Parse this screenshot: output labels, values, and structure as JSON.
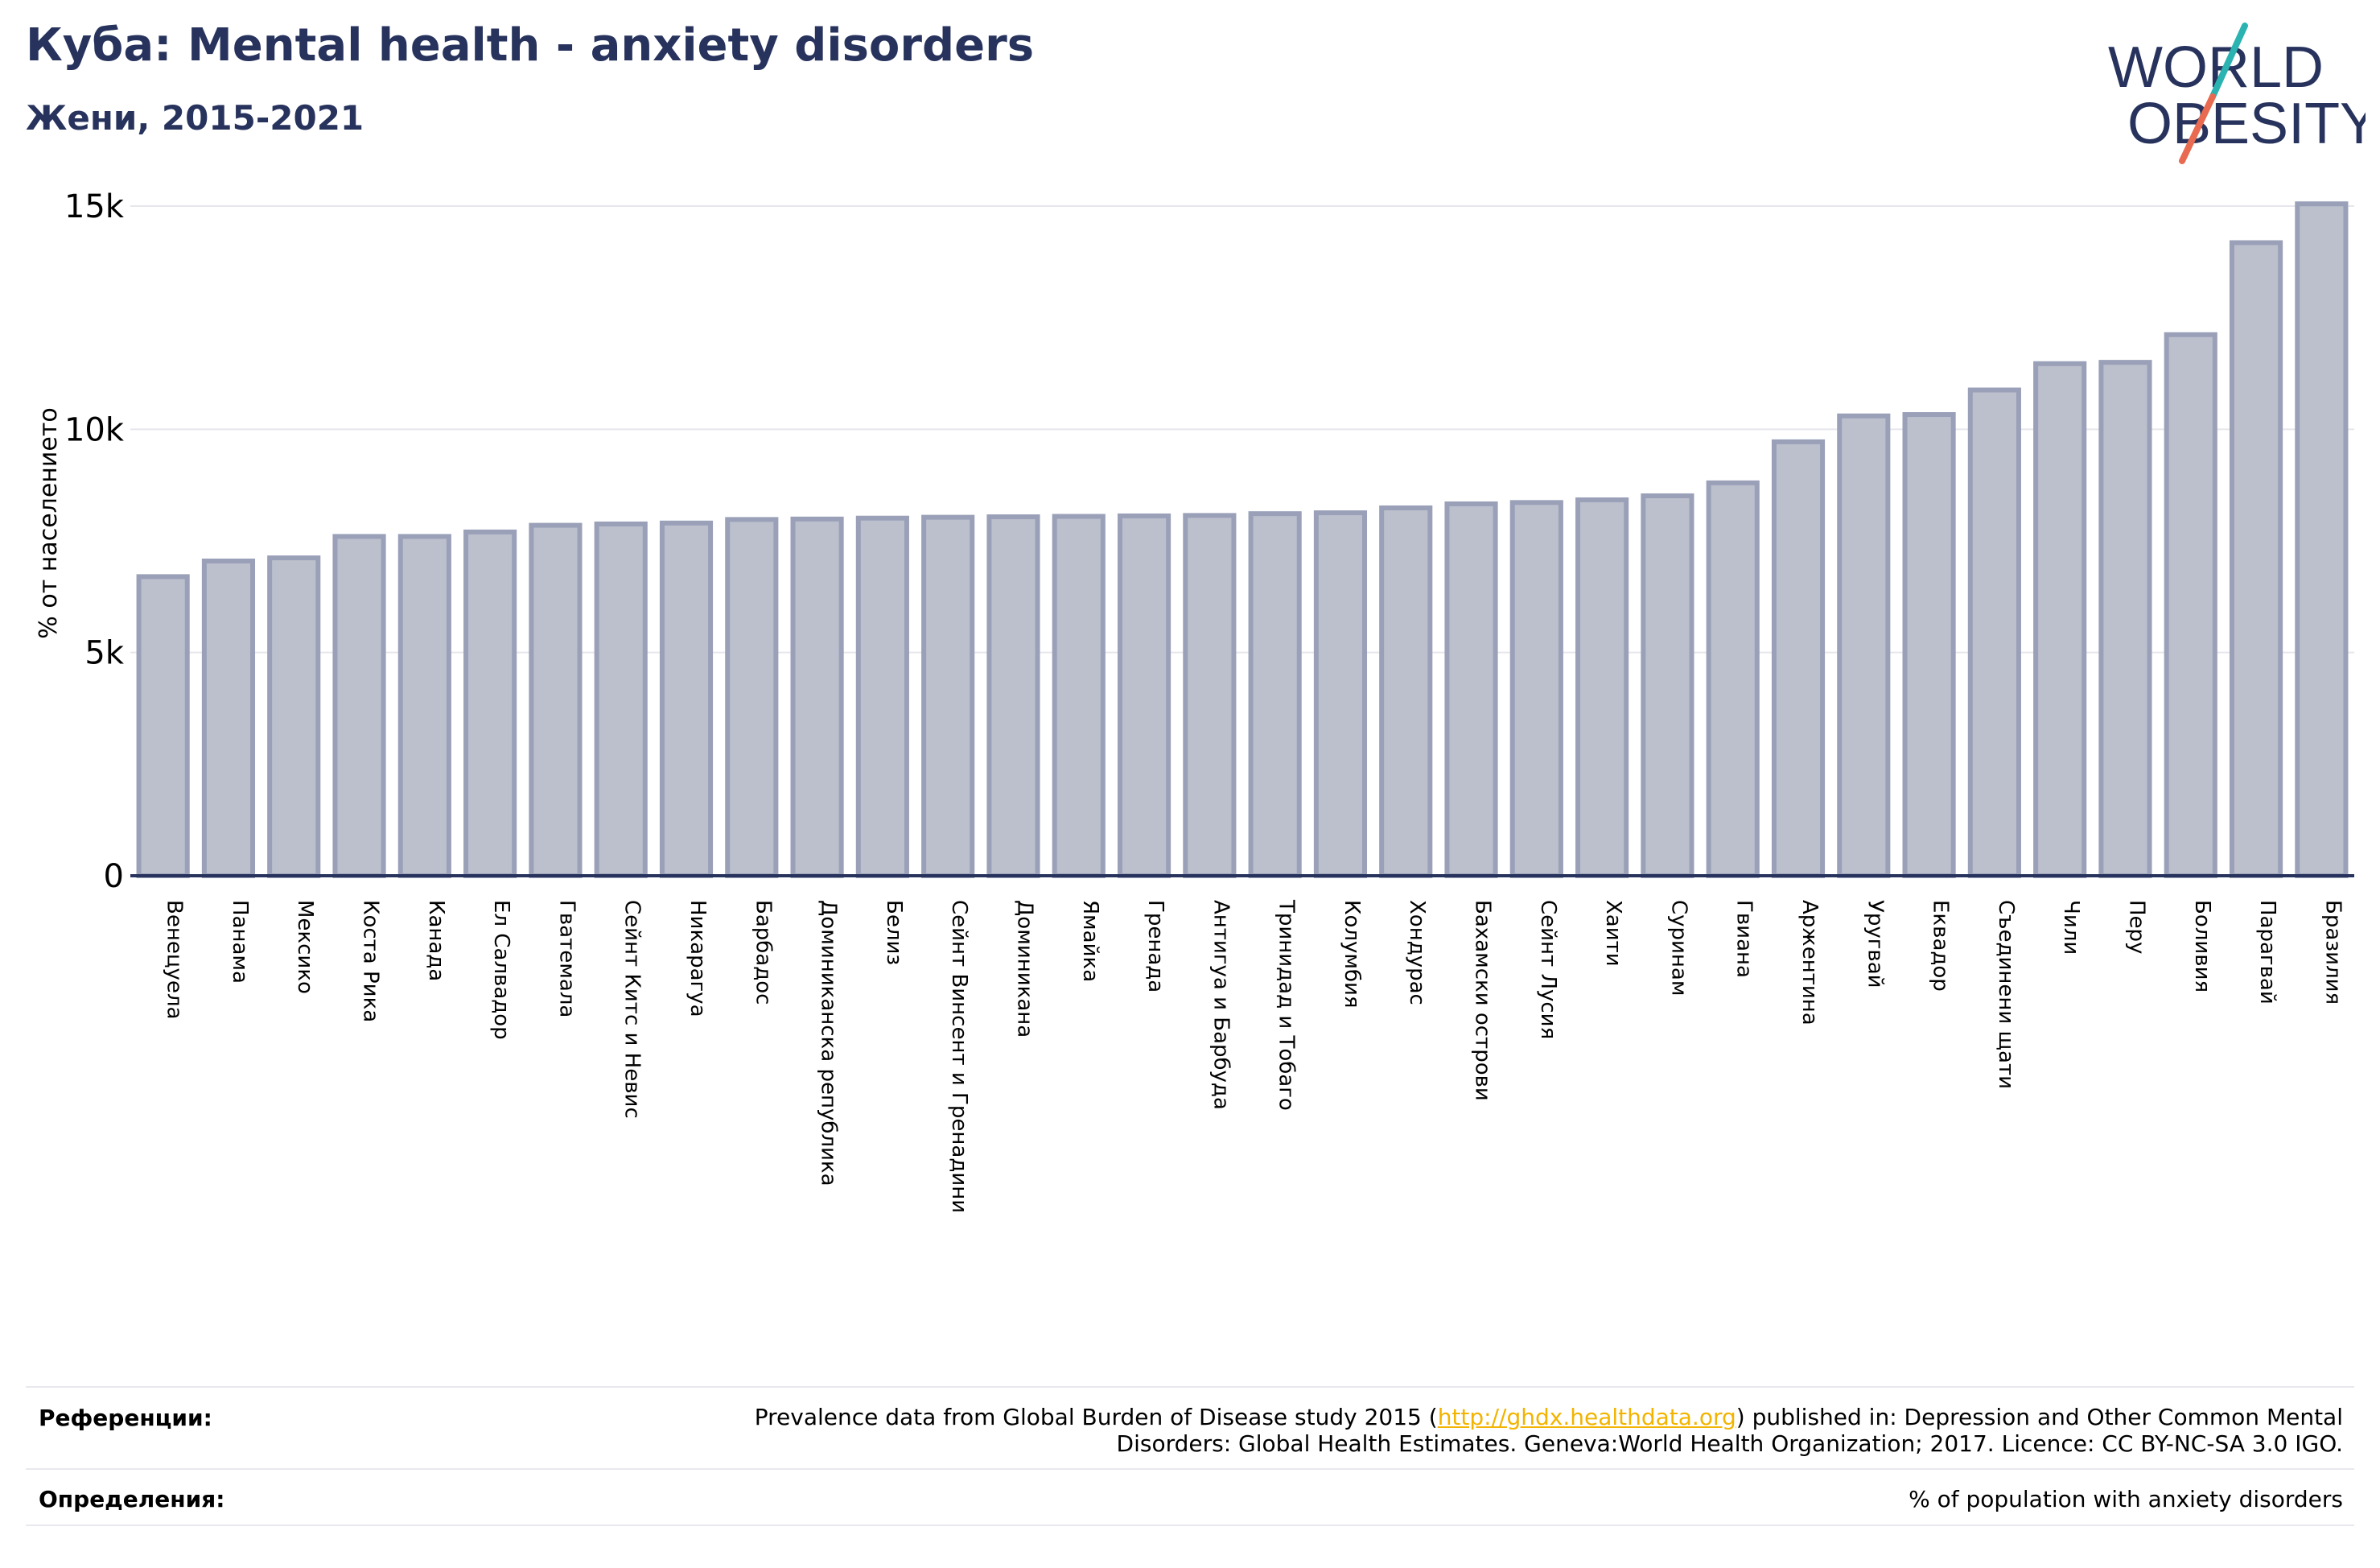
{
  "header": {
    "title": "Куба: Mental health - anxiety disorders",
    "subtitle": "Жени, 2015-2021"
  },
  "logo": {
    "line1": "WORLD",
    "line2": "OBESITY",
    "colors": {
      "text": "#27335d",
      "slash_teal": "#2ab3b0",
      "slash_red": "#e86a50"
    }
  },
  "colors": {
    "bar_fill": "#bcc0cd",
    "bar_stroke": "#9aa0b8",
    "axis": "#27335d",
    "grid": "#e6e6ec",
    "link": "#f2b400"
  },
  "chart_data": {
    "type": "bar",
    "ylabel": "% от населението",
    "ylim": [
      0,
      15000
    ],
    "yticks": [
      0,
      5000,
      10000,
      15000
    ],
    "ytick_labels": [
      "0",
      "5k",
      "10k",
      "15k"
    ],
    "grid": true,
    "categories": [
      "Венецуела",
      "Панама",
      "Мексико",
      "Коста Рика",
      "Канада",
      "Ел Салвадор",
      "Гватемала",
      "Сейнт Китс и Невис",
      "Никарагуа",
      "Барбадос",
      "Доминиканска република",
      "Белиз",
      "Сейнт Винсент и Гренадини",
      "Доминикана",
      "Ямайка",
      "Гренада",
      "Антигуа и Барбуда",
      "Тринидад и Тобаго",
      "Колумбия",
      "Хондурас",
      "Бахамски острови",
      "Сейнт Лусия",
      "Хаити",
      "Суринам",
      "Гвиана",
      "Аржентина",
      "Уругвай",
      "Еквадор",
      "Съединени щати",
      "Чили",
      "Перу",
      "Боливия",
      "Парагвай",
      "Бразилия"
    ],
    "values": [
      6700,
      7050,
      7120,
      7600,
      7600,
      7700,
      7850,
      7880,
      7900,
      7980,
      7990,
      8010,
      8030,
      8040,
      8050,
      8060,
      8070,
      8110,
      8130,
      8240,
      8330,
      8360,
      8420,
      8510,
      8800,
      9720,
      10300,
      10330,
      10880,
      11470,
      11500,
      12120,
      14180,
      15050
    ]
  },
  "footer": {
    "references_label": "Референции:",
    "references_text_pre": "Prevalence data from Global Burden of Disease study 2015 (",
    "references_link": "http://ghdx.healthdata.org",
    "references_text_post": ") published in: Depression and Other Common Mental",
    "references_text_line2": "Disorders: Global Health Estimates. Geneva:World Health Organization; 2017. Licence: CC BY-NC-SA 3.0 IGO.",
    "definitions_label": "Определения:",
    "definitions_text": "% of population with anxiety disorders"
  }
}
